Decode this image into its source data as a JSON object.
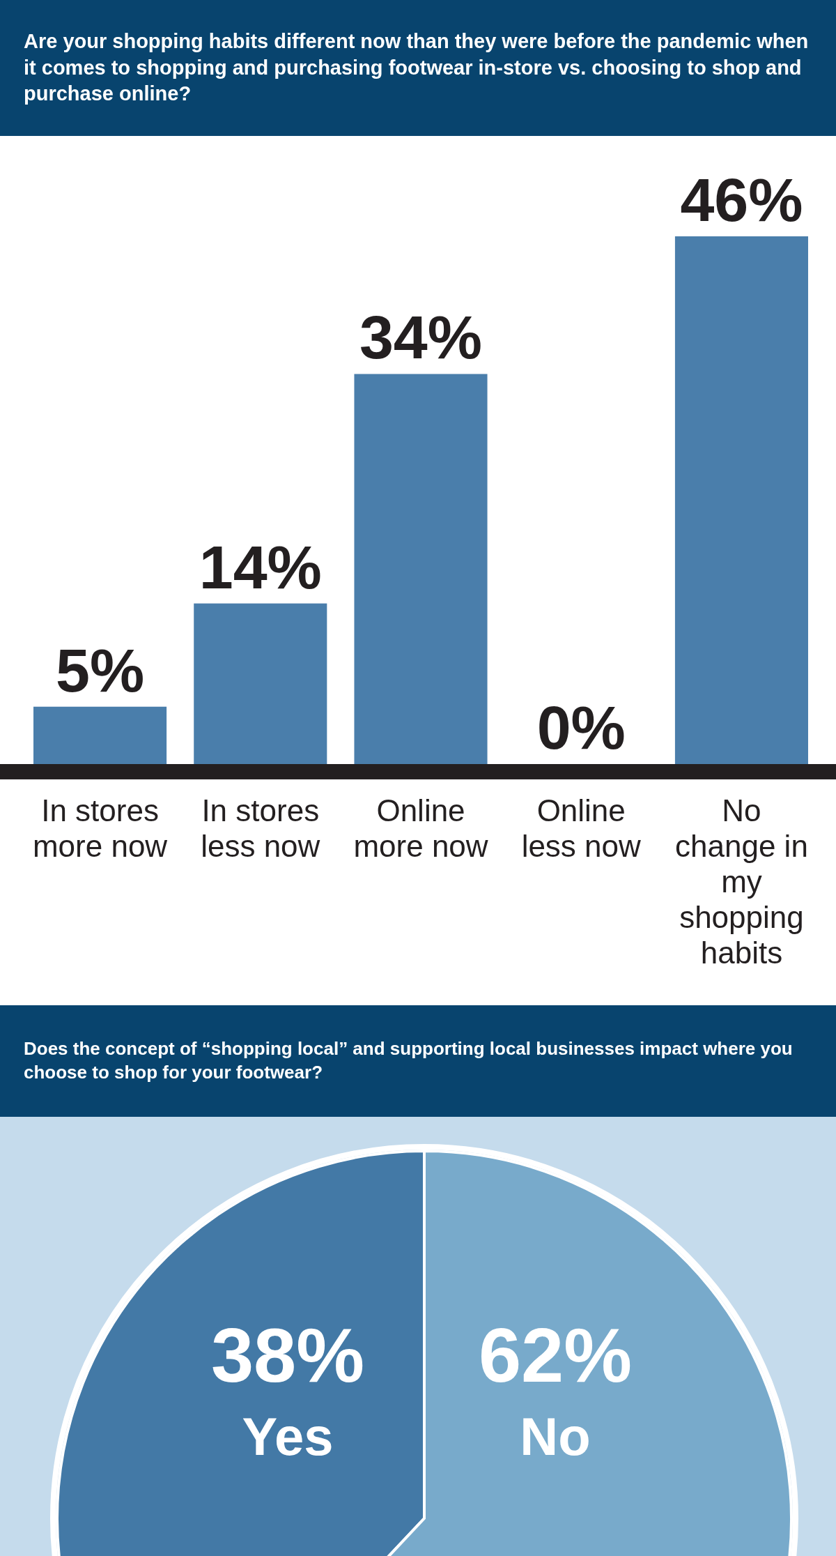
{
  "chart_data": [
    {
      "type": "bar",
      "title": "Are your shopping habits different now than they were before the pandemic when it comes to shopping and purchasing footwear in-store vs. choosing to shop and purchase online?",
      "categories": [
        "In stores more now",
        "In stores less now",
        "Online more now",
        "Online less now",
        "No change in my shopping habits"
      ],
      "values": [
        5,
        14,
        34,
        0,
        46
      ],
      "value_labels": [
        "5%",
        "14%",
        "34%",
        "0%",
        "46%"
      ],
      "color": "#4a7eab",
      "relative": false
    },
    {
      "type": "pie",
      "title": "Does the concept of “shopping local” and supporting local businesses impact where you choose to shop for your footwear?",
      "categories": [
        "Yes",
        "No"
      ],
      "values": [
        38,
        62
      ],
      "value_labels": [
        "38%",
        "62%"
      ],
      "colors": [
        "#4379a6",
        "#78aacb"
      ]
    }
  ]
}
